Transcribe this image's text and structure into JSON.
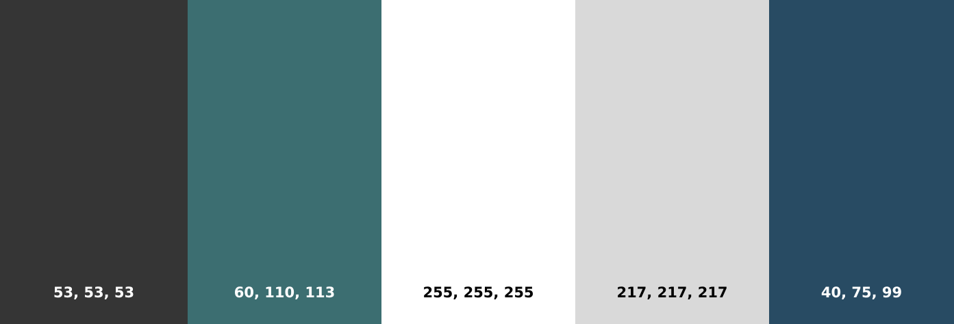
{
  "palette": {
    "swatches": [
      {
        "label": "53, 53, 53",
        "color": "#353535",
        "text_color": "#ffffff"
      },
      {
        "label": "60, 110, 113",
        "color": "#3c6e71",
        "text_color": "#ffffff"
      },
      {
        "label": "255, 255, 255",
        "color": "#ffffff",
        "text_color": "#000000"
      },
      {
        "label": "217, 217, 217",
        "color": "#d9d9d9",
        "text_color": "#000000"
      },
      {
        "label": "40, 75, 99",
        "color": "#284b63",
        "text_color": "#ffffff"
      }
    ]
  }
}
